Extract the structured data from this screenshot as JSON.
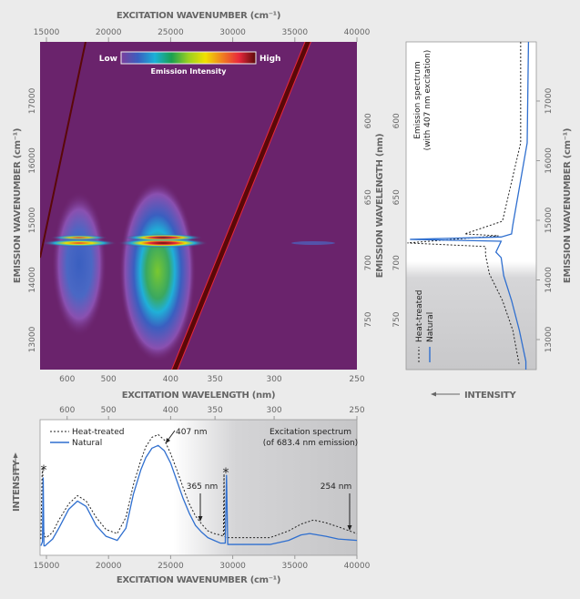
{
  "colors": {
    "background": "#ebebeb",
    "heatmap_bg": "#6a236c",
    "natural": "#2f6fcf",
    "heat_treated": "#222222",
    "scatter_line": "#5a0808"
  },
  "chart_data": [
    {
      "type": "heatmap",
      "top_xlabel": "EXCITATION WAVENUMBER (cm⁻¹)",
      "xlabel": "EXCITATION WAVELENGTH (nm)",
      "ylabel": "EMISSION WAVENUMBER (cm⁻¹)",
      "right_ylabel": "EMISSION WAVELENGTH (nm)",
      "xlim_wavenumber": [
        14487,
        40000
      ],
      "ylim_wavenumber": [
        12496,
        17992
      ],
      "top_ticks": [
        15000,
        20000,
        25000,
        30000,
        35000,
        40000
      ],
      "bottom_ticks_nm": [
        600,
        500,
        400,
        350,
        300,
        250
      ],
      "left_ticks": [
        13000,
        14000,
        15000,
        16000,
        17000
      ],
      "right_ticks_nm": [
        600,
        650,
        700,
        750
      ],
      "colorbar": {
        "low": "Low",
        "high": "High",
        "label": "Emission Intensity",
        "stops": [
          "#7b3f9c",
          "#3a5fc0",
          "#1ab0d8",
          "#1aa050",
          "#9ad020",
          "#f0e000",
          "#f08020",
          "#e8283c",
          "#5a0a0a"
        ]
      }
    },
    {
      "type": "line",
      "title": [
        "Emission spectrum",
        "(with 407 nm excitation)"
      ],
      "xlabel": "INTENSITY",
      "ylabel": "EMISSION WAVENUMBER (cm⁻¹)",
      "left_ticks_nm": [
        600,
        650,
        700,
        750
      ],
      "right_ticks": [
        13000,
        14000,
        15000,
        16000,
        17000
      ],
      "legend": [
        "Heat-treated",
        "Natural"
      ],
      "series": [
        {
          "name": "Heat-treated",
          "style": "dashed",
          "y": [
            17992,
            16300,
            14985,
            14771,
            14740,
            14620,
            14560,
            14420,
            14100,
            13656,
            13153,
            12560
          ],
          "x": [
            0.12,
            0.12,
            0.26,
            0.55,
            0.29,
            0.99,
            0.39,
            0.39,
            0.36,
            0.26,
            0.18,
            0.13
          ]
        },
        {
          "name": "Natural",
          "style": "solid",
          "y": [
            17992,
            16298,
            14924,
            14771,
            14720,
            14680,
            14649,
            14466,
            14374,
            14069,
            13656,
            13153,
            12634,
            12496
          ],
          "x": [
            0.06,
            0.07,
            0.18,
            0.19,
            0.27,
            0.97,
            0.27,
            0.31,
            0.27,
            0.25,
            0.19,
            0.13,
            0.08,
            0.08
          ]
        }
      ]
    },
    {
      "type": "line",
      "title": [
        "Excitation spectrum",
        "(of 683.4 nm emission)"
      ],
      "xlabel": "EXCITATION WAVENUMBER (cm⁻¹)",
      "ylabel": "INTENSITY",
      "top_ticks_nm": [
        600,
        500,
        400,
        350,
        300,
        250
      ],
      "bottom_ticks": [
        15000,
        20000,
        25000,
        30000,
        35000,
        40000
      ],
      "legend": [
        "Heat-treated",
        "Natural"
      ],
      "annotations": [
        {
          "text": "407 nm",
          "x": 24600
        },
        {
          "text": "365 nm",
          "x": 27400
        },
        {
          "text": "254 nm",
          "x": 39400
        },
        {
          "text": "*",
          "x": 14750
        },
        {
          "text": "*",
          "x": 29400
        }
      ],
      "series": [
        {
          "name": "Heat-treated",
          "style": "dashed",
          "x": [
            14550,
            14650,
            14700,
            14760,
            14850,
            15000,
            15500,
            16000,
            16800,
            17500,
            18200,
            19000,
            19800,
            20700,
            21400,
            22000,
            22600,
            23000,
            23500,
            24000,
            24500,
            25000,
            25500,
            26000,
            26500,
            27000,
            27500,
            28000,
            28500,
            29000,
            29250,
            29300,
            29350,
            29450,
            30000,
            31000,
            33000,
            34500,
            35500,
            36500,
            37500,
            38500,
            40000
          ],
          "y": [
            0.12,
            0.6,
            0.64,
            0.2,
            0.14,
            0.13,
            0.17,
            0.26,
            0.38,
            0.44,
            0.4,
            0.28,
            0.19,
            0.16,
            0.28,
            0.52,
            0.7,
            0.8,
            0.87,
            0.89,
            0.85,
            0.75,
            0.63,
            0.5,
            0.38,
            0.29,
            0.23,
            0.18,
            0.16,
            0.15,
            0.14,
            0.6,
            0.14,
            0.13,
            0.13,
            0.13,
            0.13,
            0.18,
            0.23,
            0.26,
            0.24,
            0.21,
            0.16
          ]
        },
        {
          "name": "Natural",
          "style": "solid",
          "x": [
            14550,
            14680,
            14740,
            14800,
            14900,
            15000,
            15500,
            16000,
            16800,
            17500,
            18200,
            19000,
            19800,
            20700,
            21400,
            22000,
            22600,
            23000,
            23500,
            24000,
            24500,
            25000,
            25500,
            26000,
            26500,
            27000,
            27500,
            28000,
            28500,
            29000,
            29400,
            29500,
            29600,
            30000,
            31000,
            33000,
            34500,
            35500,
            36200,
            37500,
            38500,
            40000
          ],
          "y": [
            0.07,
            0.1,
            0.57,
            0.07,
            0.07,
            0.08,
            0.12,
            0.2,
            0.34,
            0.4,
            0.36,
            0.22,
            0.14,
            0.11,
            0.2,
            0.45,
            0.63,
            0.72,
            0.79,
            0.81,
            0.77,
            0.68,
            0.55,
            0.42,
            0.31,
            0.22,
            0.17,
            0.13,
            0.11,
            0.09,
            0.09,
            0.59,
            0.08,
            0.08,
            0.08,
            0.08,
            0.11,
            0.15,
            0.16,
            0.14,
            0.12,
            0.11
          ]
        }
      ]
    }
  ]
}
